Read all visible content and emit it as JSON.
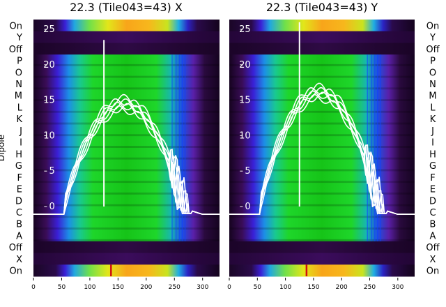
{
  "chart_data": [
    {
      "type": "heatmap",
      "title": "22.3 (Tile043=43) X",
      "ylabel": "Dipole",
      "rows": [
        "On",
        "Y",
        "Off",
        "P",
        "O",
        "N",
        "M",
        "L",
        "K",
        "J",
        "I",
        "H",
        "G",
        "F",
        "E",
        "D",
        "C",
        "B",
        "A",
        "Off",
        "X",
        "On"
      ],
      "xlim": [
        0,
        330
      ],
      "xticks": [
        0,
        50,
        100,
        150,
        200,
        250,
        300
      ],
      "overlay_ylim": [
        -3,
        26
      ],
      "overlay_yticks": [
        0,
        5,
        10,
        15,
        20,
        25
      ],
      "overlay_peak_y": 15.2,
      "overlay_spike": {
        "x": 125,
        "y": 23.5
      }
    },
    {
      "type": "heatmap",
      "title": "22.3 (Tile043=43) Y",
      "rows": [
        "On",
        "Y",
        "Off",
        "P",
        "O",
        "N",
        "M",
        "L",
        "K",
        "J",
        "I",
        "H",
        "G",
        "F",
        "E",
        "D",
        "C",
        "B",
        "A",
        "Off",
        "X",
        "On"
      ],
      "xlim": [
        0,
        330
      ],
      "xticks": [
        0,
        50,
        100,
        150,
        200,
        250,
        300
      ],
      "overlay_ylim": [
        -3,
        26
      ],
      "overlay_yticks": [
        0,
        5,
        10,
        15,
        20,
        25
      ],
      "overlay_peak_y": 16.8,
      "overlay_spike": {
        "x": 125,
        "y": 26
      }
    }
  ],
  "colors": {
    "overlay": "#ffffff",
    "background": "#ffffff"
  }
}
